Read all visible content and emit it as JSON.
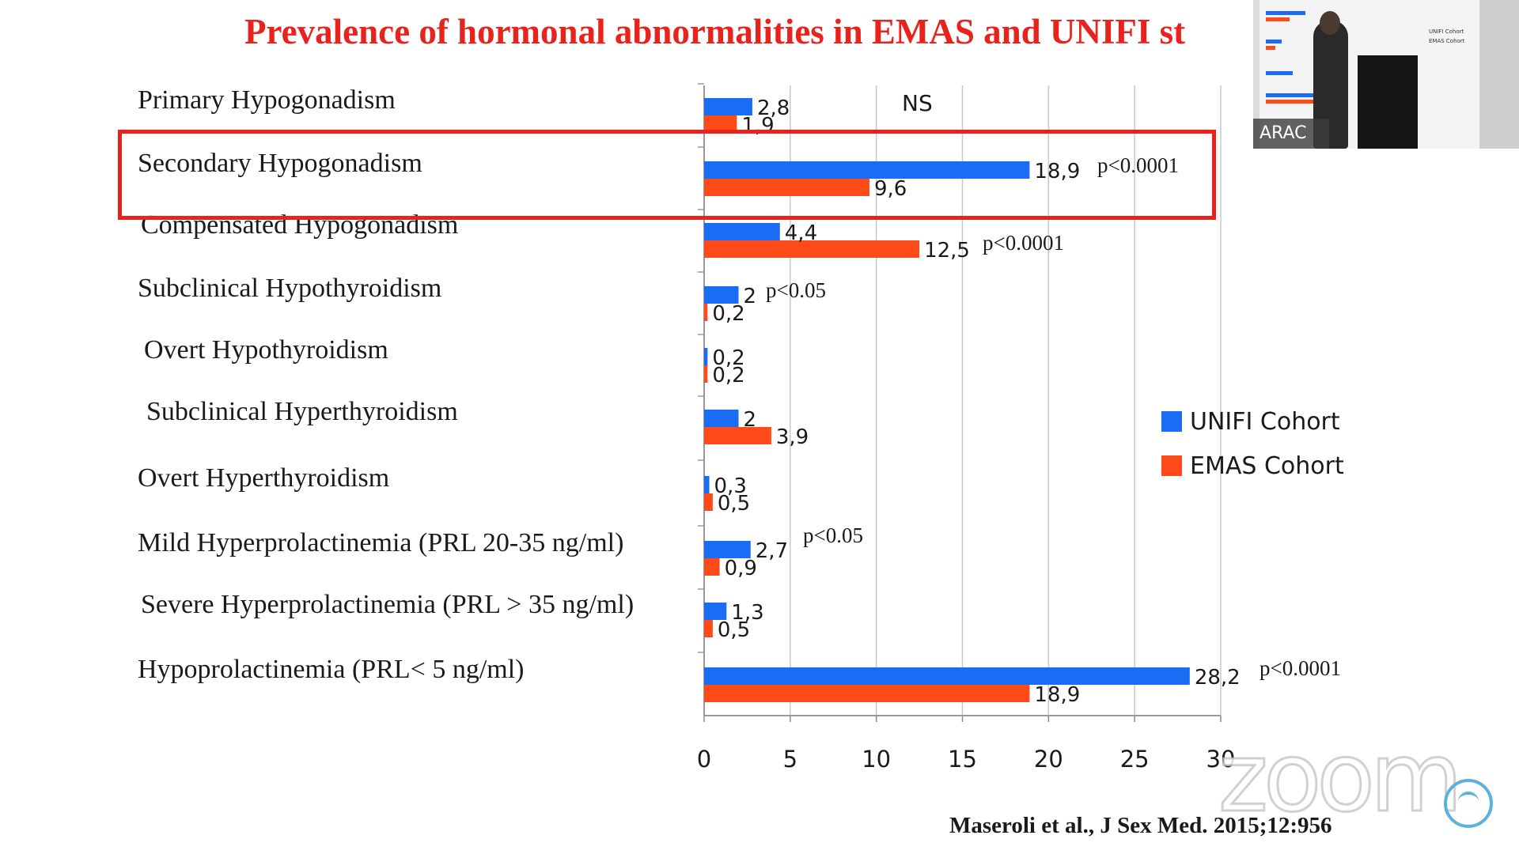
{
  "title": "Prevalence of hormonal abnormalities in EMAS and UNIFI st",
  "citation": "Maseroli et al., J Sex Med. 2015;12:956",
  "colors": {
    "unifi": "#1a6cf5",
    "emas": "#ff4a1a",
    "highlight": "#e8231c",
    "grid": "#c8c8c8"
  },
  "chart_data": {
    "type": "bar",
    "orientation": "horizontal",
    "categories": [
      "Primary Hypogonadism",
      "Secondary Hypogonadism",
      "Compensated Hypogonadism",
      "Subclinical Hypothyroidism",
      "Overt Hypothyroidism",
      "Subclinical Hyperthyroidism",
      "Overt Hyperthyroidism",
      "Mild Hyperprolactinemia (PRL 20-35 ng/ml)",
      "Severe Hyperprolactinemia (PRL > 35 ng/ml)",
      "Hypoprolactinemia (PRL< 5 ng/ml)"
    ],
    "series": [
      {
        "name": "UNIFI Cohort",
        "values": [
          2.8,
          18.9,
          4.4,
          2,
          0.2,
          2,
          0.3,
          2.7,
          1.3,
          28.2
        ],
        "labels": [
          "2,8",
          "18,9",
          "4,4",
          "2",
          "0,2",
          "2",
          "0,3",
          "2,7",
          "1,3",
          "28,2"
        ]
      },
      {
        "name": "EMAS Cohort",
        "values": [
          1.9,
          9.6,
          12.5,
          0.2,
          0.2,
          3.9,
          0.5,
          0.9,
          0.5,
          18.9
        ],
        "labels": [
          "1,9",
          "9,6",
          "12,5",
          "0,2",
          "0,2",
          "3,9",
          "0,5",
          "0,9",
          "0,5",
          "18,9"
        ]
      }
    ],
    "annotations": [
      "NS",
      "p<0.0001",
      "p<0.0001",
      "p<0.05",
      "",
      "",
      "",
      "p<0.05",
      "",
      "p<0.0001"
    ],
    "xlim": [
      0,
      30
    ],
    "xticks": [
      "0",
      "5",
      "10",
      "15",
      "20",
      "25",
      "30"
    ],
    "xtick_values": [
      0,
      5,
      10,
      15,
      20,
      25,
      30
    ],
    "grid": true,
    "legend_position": "right",
    "highlighted_category": "Secondary Hypogonadism"
  },
  "video_overlay": {
    "participant_name": "ARAC",
    "slide_legend": [
      "UNIFI Cohort",
      "EMAS Cohort"
    ]
  },
  "watermark": {
    "text": "zoom",
    "logo": "conference-logo-icon"
  }
}
